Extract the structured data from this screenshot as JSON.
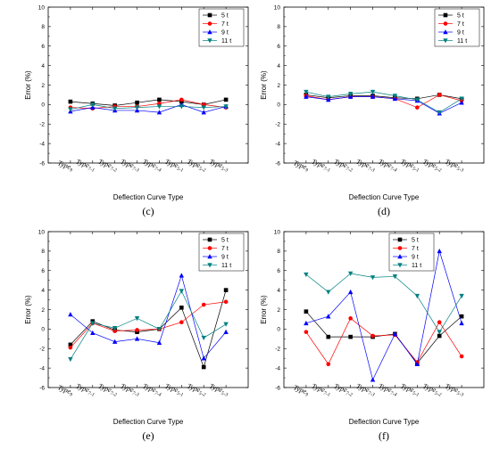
{
  "chart_data": [
    {
      "type": "line",
      "panel_label": "(c)",
      "xlabel": "Deflection Curve Type",
      "ylabel": "Error (%)",
      "ylim": [
        -6,
        10
      ],
      "yticks": [
        -6,
        -4,
        -2,
        0,
        2,
        4,
        6,
        8,
        10
      ],
      "categories": [
        "Type9",
        "Type7-1",
        "Type7-2",
        "Type7-3",
        "Type7-4",
        "Type5-1",
        "Type5-2",
        "Type5-3"
      ],
      "legend_position": "top-right",
      "series": [
        {
          "name": "5 t",
          "color": "#000000",
          "marker": "square",
          "values": [
            0.3,
            0.1,
            -0.1,
            0.2,
            0.5,
            0.3,
            0.0,
            0.5
          ]
        },
        {
          "name": "7 t",
          "color": "#ff0000",
          "marker": "circle",
          "values": [
            -0.3,
            -0.4,
            -0.2,
            -0.2,
            0.1,
            0.5,
            0.0,
            -0.3
          ]
        },
        {
          "name": "9 t",
          "color": "#0000ff",
          "marker": "triangle-up",
          "values": [
            -0.7,
            -0.3,
            -0.6,
            -0.6,
            -0.8,
            0.0,
            -0.8,
            -0.2
          ]
        },
        {
          "name": "11 t",
          "color": "#008080",
          "marker": "triangle-down",
          "values": [
            -0.5,
            0.0,
            -0.4,
            -0.3,
            -0.2,
            -0.2,
            -0.3,
            -0.2
          ]
        }
      ]
    },
    {
      "type": "line",
      "panel_label": "(d)",
      "xlabel": "Deflection Curve Type",
      "ylabel": "Error (%)",
      "ylim": [
        -6,
        10
      ],
      "yticks": [
        -6,
        -4,
        -2,
        0,
        2,
        4,
        6,
        8,
        10
      ],
      "categories": [
        "Type9",
        "Type7-1",
        "Type7-2",
        "Type7-3",
        "Type7-4",
        "Type5-1",
        "Type5-2",
        "Type5-3"
      ],
      "legend_position": "top-right",
      "series": [
        {
          "name": "5 t",
          "color": "#000000",
          "marker": "square",
          "values": [
            1.0,
            0.7,
            0.9,
            0.9,
            0.7,
            0.6,
            1.0,
            0.6
          ]
        },
        {
          "name": "7 t",
          "color": "#ff0000",
          "marker": "circle",
          "values": [
            0.9,
            0.5,
            0.8,
            0.8,
            0.6,
            -0.3,
            1.0,
            0.4
          ]
        },
        {
          "name": "9 t",
          "color": "#0000ff",
          "marker": "triangle-up",
          "values": [
            0.8,
            0.5,
            0.8,
            0.8,
            0.6,
            0.4,
            -0.9,
            0.2
          ]
        },
        {
          "name": "11 t",
          "color": "#008080",
          "marker": "triangle-down",
          "values": [
            1.3,
            0.8,
            1.1,
            1.3,
            0.9,
            0.5,
            -0.8,
            0.6
          ]
        }
      ]
    },
    {
      "type": "line",
      "panel_label": "(e)",
      "xlabel": "Deflection Curve Type",
      "ylabel": "Error (%)",
      "ylim": [
        -6,
        10
      ],
      "yticks": [
        -6,
        -4,
        -2,
        0,
        2,
        4,
        6,
        8,
        10
      ],
      "categories": [
        "Type9",
        "Type7-1",
        "Type7-2",
        "Type7-3",
        "Type7-4",
        "Type5-1",
        "Type5-2",
        "Type5-3"
      ],
      "legend_position": "top-right",
      "series": [
        {
          "name": "5 t",
          "color": "#000000",
          "marker": "square",
          "values": [
            -1.6,
            0.8,
            -0.1,
            -0.3,
            0.0,
            2.2,
            -3.9,
            4.0
          ]
        },
        {
          "name": "7 t",
          "color": "#ff0000",
          "marker": "circle",
          "values": [
            -1.9,
            0.6,
            -0.2,
            -0.1,
            0.0,
            0.7,
            2.5,
            2.8
          ]
        },
        {
          "name": "9 t",
          "color": "#0000ff",
          "marker": "triangle-up",
          "values": [
            1.5,
            -0.4,
            -1.3,
            -1.0,
            -1.4,
            5.5,
            -3.0,
            -0.3
          ]
        },
        {
          "name": "11 t",
          "color": "#008080",
          "marker": "triangle-down",
          "values": [
            -3.1,
            0.6,
            0.1,
            1.1,
            0.0,
            3.9,
            -0.9,
            0.5
          ]
        }
      ]
    },
    {
      "type": "line",
      "panel_label": "(f)",
      "xlabel": "Deflection Curve Type",
      "ylabel": "Error (%)",
      "ylim": [
        -6,
        10
      ],
      "yticks": [
        -6,
        -4,
        -2,
        0,
        2,
        4,
        6,
        8,
        10
      ],
      "categories": [
        "Type9",
        "Type7-1",
        "Type7-2",
        "Type7-3",
        "Type7-4",
        "Type5-1",
        "Type5-2",
        "Type5-3"
      ],
      "legend_position": "top-left-center",
      "series": [
        {
          "name": "5 t",
          "color": "#000000",
          "marker": "square",
          "values": [
            1.8,
            -0.8,
            -0.8,
            -0.8,
            -0.5,
            -3.5,
            -0.7,
            1.3
          ]
        },
        {
          "name": "7 t",
          "color": "#ff0000",
          "marker": "circle",
          "values": [
            -0.3,
            -3.6,
            1.1,
            -0.7,
            -0.6,
            -3.4,
            0.7,
            -2.8
          ]
        },
        {
          "name": "9 t",
          "color": "#0000ff",
          "marker": "triangle-up",
          "values": [
            0.6,
            1.3,
            3.8,
            -5.2,
            -0.5,
            -3.6,
            8.0,
            0.6
          ]
        },
        {
          "name": "11 t",
          "color": "#008080",
          "marker": "triangle-down",
          "values": [
            5.6,
            3.8,
            5.7,
            5.3,
            5.4,
            3.4,
            -0.3,
            3.4
          ]
        }
      ]
    }
  ]
}
